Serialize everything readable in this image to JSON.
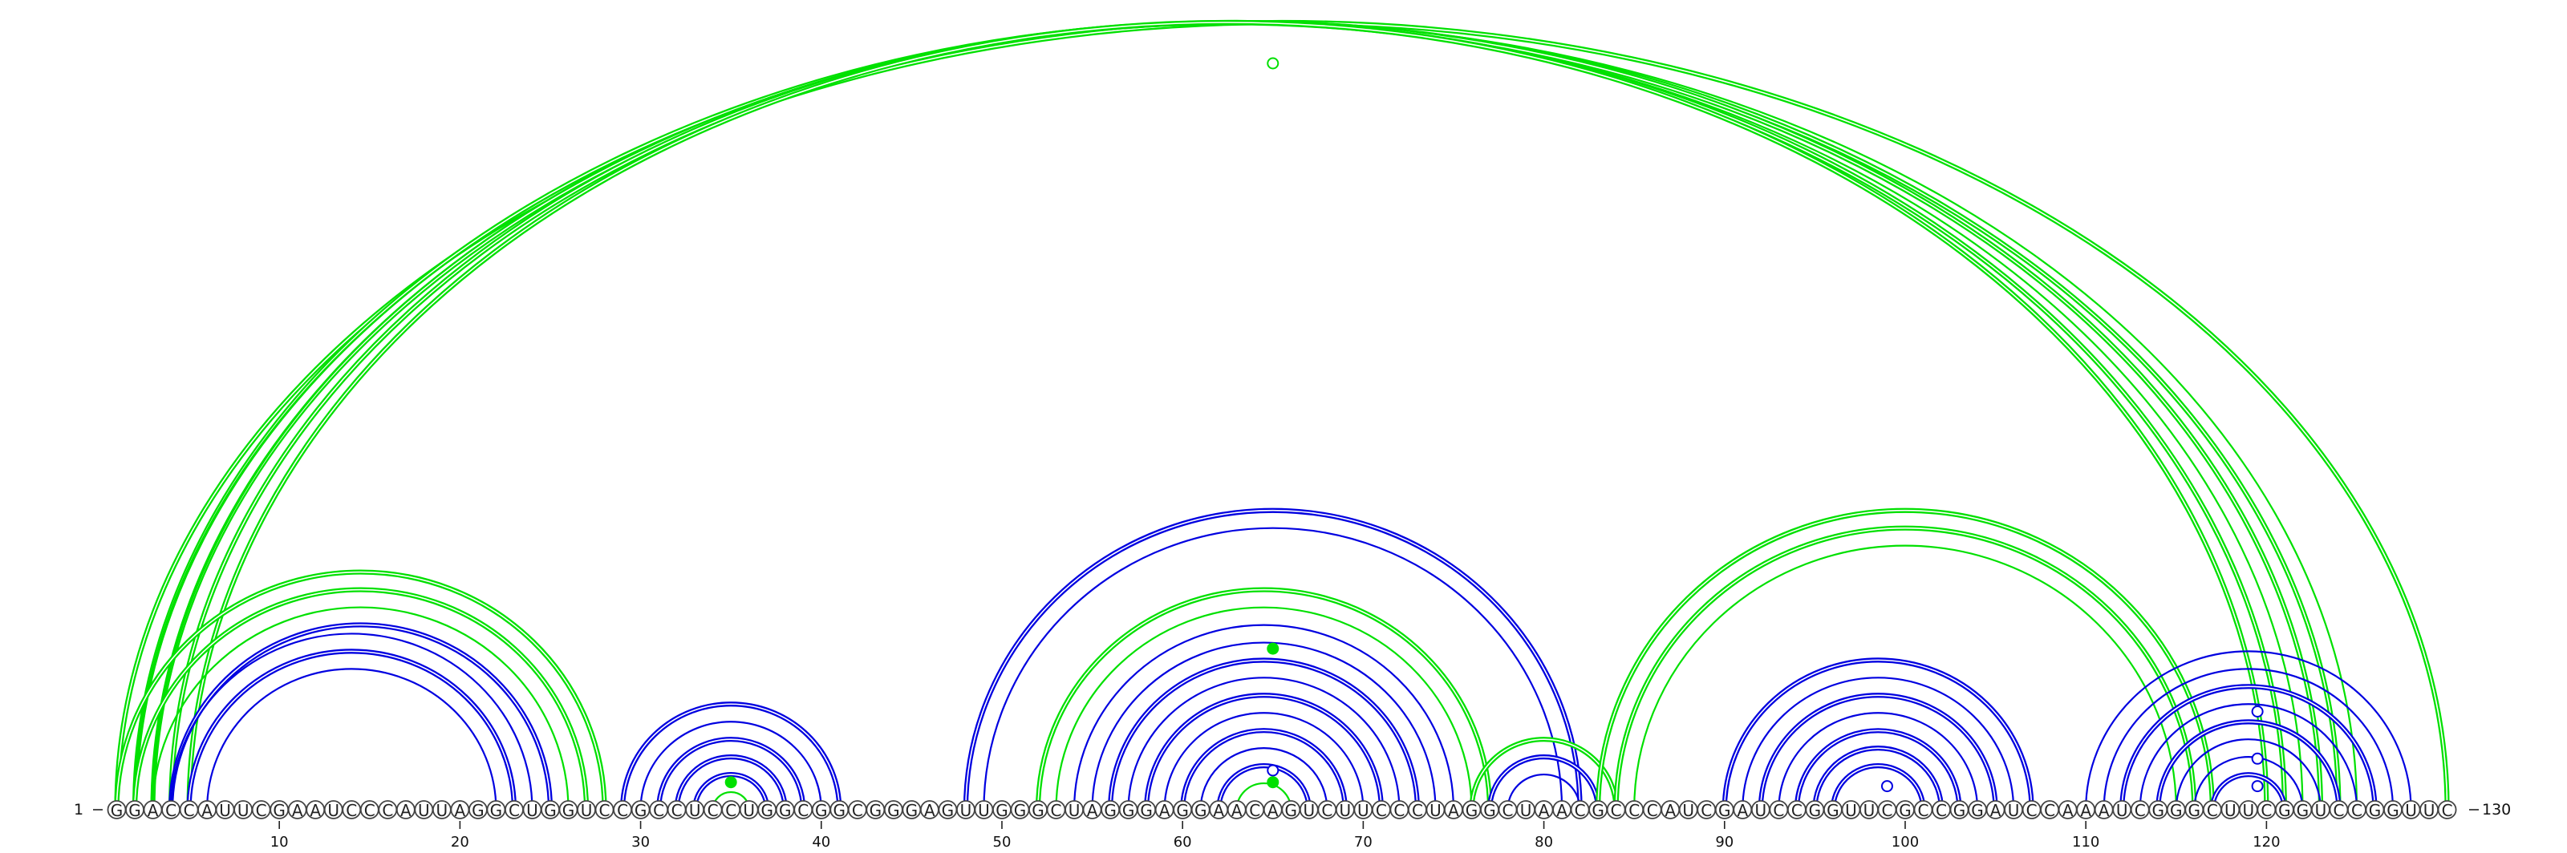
{
  "diagram": {
    "sequence": "GGACCAUUCGAAUCCCAUUAGGCUGGUCCGCCUCCUGGCGGCGGGAGUUGGGCUAGGGAGGAACAGUCUUCCCUAGGCUAACGCCCAUCGAUCCGGUUCGCCGGAUCCAAAUCGGGCUUCGGUCCGGUUC",
    "start_label": "1",
    "end_label": "130",
    "tick_labels": [
      {
        "pos": 10,
        "text": "10"
      },
      {
        "pos": 20,
        "text": "20"
      },
      {
        "pos": 30,
        "text": "30"
      },
      {
        "pos": 40,
        "text": "40"
      },
      {
        "pos": 50,
        "text": "50"
      },
      {
        "pos": 60,
        "text": "60"
      },
      {
        "pos": 70,
        "text": "70"
      },
      {
        "pos": 80,
        "text": "80"
      },
      {
        "pos": 90,
        "text": "90"
      },
      {
        "pos": 100,
        "text": "100"
      },
      {
        "pos": 110,
        "text": "110"
      },
      {
        "pos": 120,
        "text": "120"
      }
    ],
    "colors": {
      "green": "#00e000",
      "blue": "#0000e0"
    },
    "arcs": [
      {
        "i": 1,
        "j": 130,
        "color": "green",
        "style": "double"
      },
      {
        "i": 2,
        "j": 124,
        "color": "green",
        "style": "double"
      },
      {
        "i": 2,
        "j": 125,
        "color": "green",
        "style": "single"
      },
      {
        "i": 3,
        "j": 123,
        "color": "green",
        "style": "double"
      },
      {
        "i": 3,
        "j": 122,
        "color": "green",
        "style": "single"
      },
      {
        "i": 4,
        "j": 121,
        "color": "green",
        "style": "double"
      },
      {
        "i": 5,
        "j": 120,
        "color": "green",
        "style": "double"
      },
      {
        "i": 1,
        "j": 28,
        "color": "green",
        "style": "double"
      },
      {
        "i": 2,
        "j": 27,
        "color": "green",
        "style": "double"
      },
      {
        "i": 3,
        "j": 26,
        "color": "green",
        "style": "single"
      },
      {
        "i": 4,
        "j": 25,
        "color": "blue",
        "style": "double"
      },
      {
        "i": 4,
        "j": 24,
        "color": "blue",
        "style": "single"
      },
      {
        "i": 5,
        "j": 23,
        "color": "blue",
        "style": "double"
      },
      {
        "i": 6,
        "j": 22,
        "color": "blue",
        "style": "single"
      },
      {
        "i": 29,
        "j": 41,
        "color": "blue",
        "style": "double"
      },
      {
        "i": 30,
        "j": 40,
        "color": "blue",
        "style": "single"
      },
      {
        "i": 31,
        "j": 39,
        "color": "blue",
        "style": "double"
      },
      {
        "i": 32,
        "j": 38,
        "color": "blue",
        "style": "double"
      },
      {
        "i": 33,
        "j": 37,
        "color": "blue",
        "style": "double"
      },
      {
        "i": 34,
        "j": 36,
        "color": "green",
        "style": "single"
      },
      {
        "i": 48,
        "j": 82,
        "color": "blue",
        "style": "double"
      },
      {
        "i": 49,
        "j": 81,
        "color": "blue",
        "style": "single"
      },
      {
        "i": 52,
        "j": 77,
        "color": "green",
        "style": "double"
      },
      {
        "i": 53,
        "j": 76,
        "color": "green",
        "style": "single"
      },
      {
        "i": 54,
        "j": 75,
        "color": "blue",
        "style": "single"
      },
      {
        "i": 55,
        "j": 74,
        "color": "blue",
        "style": "single"
      },
      {
        "i": 56,
        "j": 73,
        "color": "blue",
        "style": "double"
      },
      {
        "i": 57,
        "j": 72,
        "color": "blue",
        "style": "single"
      },
      {
        "i": 58,
        "j": 71,
        "color": "blue",
        "style": "double"
      },
      {
        "i": 59,
        "j": 70,
        "color": "blue",
        "style": "single"
      },
      {
        "i": 60,
        "j": 69,
        "color": "blue",
        "style": "double"
      },
      {
        "i": 61,
        "j": 68,
        "color": "blue",
        "style": "single"
      },
      {
        "i": 62,
        "j": 67,
        "color": "blue",
        "style": "double"
      },
      {
        "i": 63,
        "j": 66,
        "color": "green",
        "style": "single"
      },
      {
        "i": 76,
        "j": 84,
        "color": "green",
        "style": "double"
      },
      {
        "i": 77,
        "j": 83,
        "color": "blue",
        "style": "double"
      },
      {
        "i": 78,
        "j": 82,
        "color": "blue",
        "style": "single"
      },
      {
        "i": 83,
        "j": 117,
        "color": "green",
        "style": "double"
      },
      {
        "i": 84,
        "j": 116,
        "color": "green",
        "style": "double"
      },
      {
        "i": 85,
        "j": 115,
        "color": "green",
        "style": "single"
      },
      {
        "i": 90,
        "j": 107,
        "color": "blue",
        "style": "double"
      },
      {
        "i": 91,
        "j": 106,
        "color": "blue",
        "style": "single"
      },
      {
        "i": 92,
        "j": 105,
        "color": "blue",
        "style": "double"
      },
      {
        "i": 93,
        "j": 104,
        "color": "blue",
        "style": "single"
      },
      {
        "i": 94,
        "j": 103,
        "color": "blue",
        "style": "double"
      },
      {
        "i": 95,
        "j": 102,
        "color": "blue",
        "style": "double"
      },
      {
        "i": 96,
        "j": 101,
        "color": "blue",
        "style": "double"
      },
      {
        "i": 110,
        "j": 128,
        "color": "blue",
        "style": "single"
      },
      {
        "i": 111,
        "j": 127,
        "color": "blue",
        "style": "single"
      },
      {
        "i": 112,
        "j": 126,
        "color": "blue",
        "style": "double"
      },
      {
        "i": 113,
        "j": 125,
        "color": "blue",
        "style": "single"
      },
      {
        "i": 114,
        "j": 124,
        "color": "blue",
        "style": "double"
      },
      {
        "i": 115,
        "j": 123,
        "color": "blue",
        "style": "single"
      },
      {
        "i": 116,
        "j": 122,
        "color": "blue",
        "style": "single"
      },
      {
        "i": 117,
        "j": 121,
        "color": "blue",
        "style": "double"
      }
    ],
    "markers": [
      {
        "pos": 65,
        "level": 0.95,
        "color": "green",
        "filled": false
      },
      {
        "pos": 35,
        "level": 0.035,
        "color": "green",
        "filled": true
      },
      {
        "pos": 65,
        "level": 0.205,
        "color": "green",
        "filled": true
      },
      {
        "pos": 65,
        "level": 0.05,
        "color": "blue",
        "filled": false
      },
      {
        "pos": 65,
        "level": 0.035,
        "color": "green",
        "filled": true
      },
      {
        "pos": 99,
        "level": 0.03,
        "color": "blue",
        "filled": false
      },
      {
        "pos": 119.5,
        "level": 0.125,
        "color": "blue",
        "filled": false
      },
      {
        "pos": 119.5,
        "level": 0.065,
        "color": "blue",
        "filled": false
      },
      {
        "pos": 119.5,
        "level": 0.03,
        "color": "blue",
        "filled": false
      }
    ]
  }
}
